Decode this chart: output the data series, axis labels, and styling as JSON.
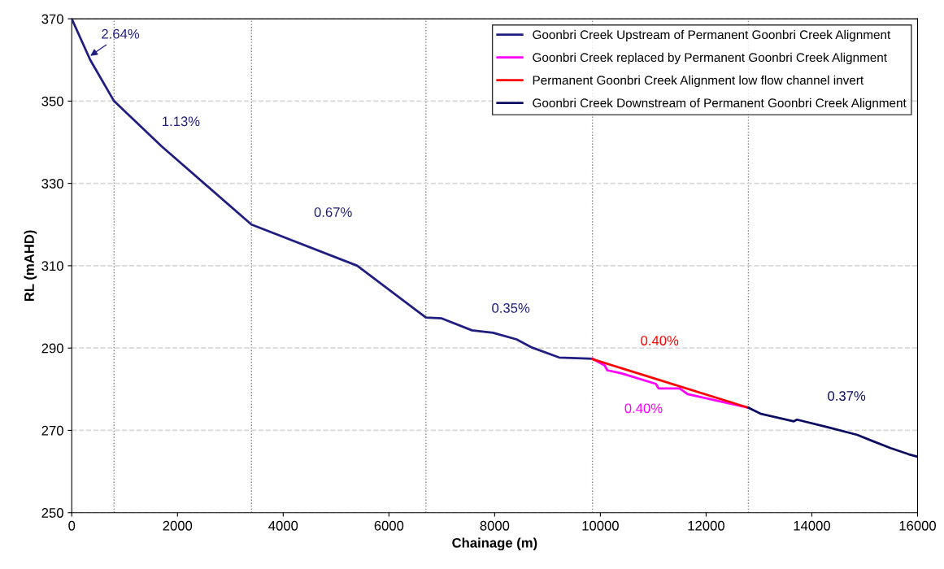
{
  "chart_data": {
    "type": "line",
    "xlabel": "Chainage (m)",
    "ylabel": "RL (mAHD)",
    "xlim": [
      0,
      16000
    ],
    "xticks": [
      0,
      2000,
      4000,
      6000,
      8000,
      10000,
      12000,
      14000,
      16000
    ],
    "ylim": [
      250,
      370
    ],
    "yticks": [
      250,
      270,
      290,
      310,
      330,
      350,
      370
    ],
    "grid": "y",
    "legend": "top right",
    "marker": "none",
    "line_style": "solid",
    "series": [
      {
        "name": "Goonbri Creek Upstream of Permanent Goonbri Creek Alignment",
        "color": "#201e80",
        "x": [
          0,
          350,
          800,
          1700,
          3400,
          5400,
          6700,
          7000,
          7570,
          7970,
          8415,
          8710,
          9220,
          9850
        ],
        "values": [
          370,
          360,
          350,
          339,
          320,
          310,
          297.4,
          297.2,
          294.3,
          293.7,
          292.1,
          290.1,
          287.7,
          287.4
        ]
      },
      {
        "name": "Goonbri Creek replaced by Permanent Goonbri Creek Alignment",
        "color": "#ff00ff",
        "x": [
          9850,
          10080,
          10130,
          10415,
          11050,
          11100,
          11500,
          11650,
          12800
        ],
        "values": [
          287.4,
          285.8,
          284.6,
          283.8,
          281.3,
          280.2,
          280.2,
          278.8,
          275.5
        ]
      },
      {
        "name": "Permanent Goonbri Creek Alignment low flow channel invert",
        "color": "#ff0000",
        "x": [
          9850,
          12800
        ],
        "values": [
          287.3,
          275.5
        ]
      },
      {
        "name": "Goonbri Creek Downstream of Permanent Goonbri Creek Alignment",
        "color": "#0c0c60",
        "x": [
          12800,
          13040,
          13660,
          13720,
          14290,
          14860,
          15150,
          15490,
          15830,
          16000
        ],
        "values": [
          275.5,
          274.0,
          272.2,
          272.6,
          270.8,
          268.9,
          267.4,
          265.7,
          264.2,
          263.6
        ]
      }
    ],
    "ref_lines": [
      {
        "axis": "x",
        "value": 800,
        "color": "#808080",
        "line_style": "dotted"
      },
      {
        "axis": "x",
        "value": 3400,
        "color": "#808080",
        "line_style": "dotted"
      },
      {
        "axis": "x",
        "value": 6700,
        "color": "#808080",
        "line_style": "dotted"
      },
      {
        "axis": "x",
        "value": 9850,
        "color": "#808080",
        "line_style": "dotted"
      },
      {
        "axis": "x",
        "value": 12800,
        "color": "#808080",
        "line_style": "dotted"
      }
    ],
    "annotations": [
      "2.64%",
      "1.13%",
      "0.67%",
      "0.35%",
      "0.40%",
      "0.40%",
      "0.37%"
    ]
  }
}
